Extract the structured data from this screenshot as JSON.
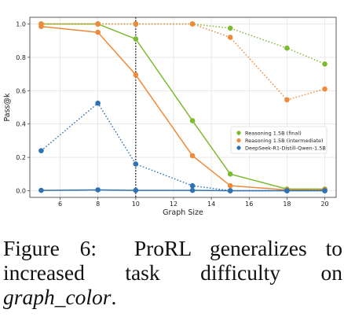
{
  "chart_data": {
    "type": "line",
    "xlabel": "Graph Size",
    "ylabel": "Pass@k",
    "xlim": [
      4.4,
      20.6
    ],
    "ylim": [
      -0.04,
      1.04
    ],
    "xticks": [
      6,
      8,
      10,
      12,
      14,
      16,
      18,
      20
    ],
    "yticks": [
      0.0,
      0.2,
      0.4,
      0.6,
      0.8,
      1.0
    ],
    "grid": true,
    "legend_position": "center-right",
    "vline_x": 10,
    "series": [
      {
        "name": "Reasoning 1.5B (final)",
        "color": "#7cbb2f",
        "x": [
          5,
          8,
          10,
          13,
          15,
          18,
          20
        ],
        "solid": [
          1.0,
          1.0,
          0.91,
          0.42,
          0.1,
          0.01,
          0.01
        ],
        "dotted": [
          1.0,
          1.0,
          1.0,
          1.0,
          0.975,
          0.855,
          0.76
        ]
      },
      {
        "name": "Reasoning 1.5B (intermediate)",
        "color": "#ef8a3a",
        "x": [
          5,
          8,
          10,
          13,
          15,
          18,
          20
        ],
        "solid": [
          0.985,
          0.95,
          0.695,
          0.21,
          0.03,
          0.005,
          0.005
        ],
        "dotted": [
          1.0,
          1.0,
          1.0,
          1.0,
          0.92,
          0.545,
          0.61
        ]
      },
      {
        "name": "DeepSeek-R1-Distill-Qwen-1.5B",
        "color": "#2f72b4",
        "x": [
          5,
          8,
          10,
          13,
          15,
          18,
          20
        ],
        "solid": [
          0.002,
          0.005,
          0.002,
          0.002,
          0.0,
          0.0,
          0.0
        ],
        "dotted": [
          0.24,
          0.525,
          0.16,
          0.03,
          0.0,
          0.0,
          0.0
        ]
      }
    ]
  },
  "caption": {
    "label": "Figure 6:",
    "text": "ProRL generalizes to increased task difficulty on",
    "code": "graph_color",
    "end": "."
  }
}
